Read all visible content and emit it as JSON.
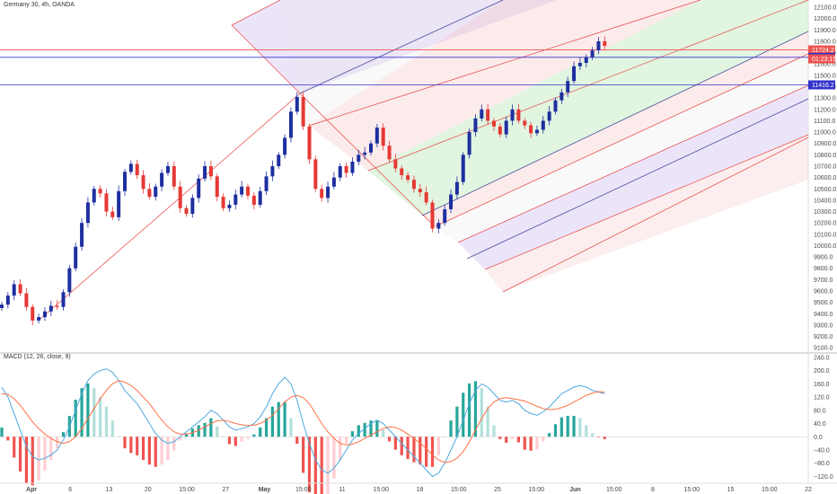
{
  "header": {
    "symbol_line": "Germany 30, 4h, OANDA",
    "macd_line": "MACD (12, 26, close, 9)"
  },
  "chart_data": [
    {
      "type": "candlestick",
      "y_ticks": [
        12100,
        12000,
        11900,
        11800,
        11700,
        11600,
        11500,
        11400,
        11300,
        11200,
        11100,
        11000,
        10900,
        10800,
        10700,
        10600,
        10500,
        10400,
        10300,
        10200,
        10100,
        10000,
        9900,
        9800,
        9700,
        9600,
        9500,
        9400,
        9300,
        9200,
        9100
      ],
      "ylim": [
        9070,
        12140
      ],
      "closes": [
        9480,
        9560,
        9660,
        9580,
        9460,
        9340,
        9370,
        9420,
        9470,
        9460,
        9590,
        9800,
        9990,
        10200,
        10380,
        10500,
        10460,
        10300,
        10250,
        10480,
        10650,
        10720,
        10620,
        10500,
        10430,
        10520,
        10640,
        10700,
        10520,
        10330,
        10280,
        10420,
        10590,
        10700,
        10610,
        10430,
        10330,
        10360,
        10450,
        10520,
        10440,
        10360,
        10480,
        10610,
        10700,
        10800,
        10950,
        11180,
        11310,
        11050,
        10760,
        10500,
        10420,
        10520,
        10600,
        10700,
        10640,
        10740,
        10800,
        10820,
        10900,
        11040,
        10880,
        10760,
        10680,
        10620,
        10580,
        10500,
        10470,
        10380,
        10150,
        10200,
        10320,
        10450,
        10560,
        10800,
        11000,
        11120,
        11200,
        11100,
        11050,
        10980,
        11100,
        11200,
        11100,
        11060,
        10990,
        11020,
        11100,
        11180,
        11280,
        11350,
        11450,
        11580,
        11610,
        11660,
        11720,
        11800,
        11760
      ],
      "price_lines": [
        {
          "price": 11724.2,
          "color": "#ef5350",
          "label": "11724.2"
        },
        {
          "price": 11658.7,
          "color": "#3333cc",
          "label": "11658.7"
        },
        {
          "price": 11416.2,
          "color": "#3333cc",
          "label": "11416.2"
        }
      ],
      "countdown_label": "01:23:15",
      "x_labels": [
        "Apr",
        "6",
        "13",
        "20",
        "15:00",
        "27",
        "May",
        "15:00",
        "11",
        "15:00",
        "18",
        "15:00",
        "25",
        "15:00",
        "Jun",
        "15:00",
        "8",
        "15:00",
        "15",
        "15:00",
        "22"
      ],
      "bold_x_labels": [
        "Apr",
        "May",
        "Jun"
      ],
      "colors": {
        "up": "#1e2fa0",
        "down": "#e53935",
        "trend": "#e53935",
        "median": "#2b2f8a",
        "hline": "#3333cc",
        "label_red": "#ef5350"
      }
    },
    {
      "type": "macd",
      "title": "MACD (12, 26, close, 9)",
      "y_ticks": [
        240,
        200,
        160,
        120,
        80,
        40,
        0,
        -40,
        -80,
        -120
      ],
      "y_tick_labels": [
        "240.0",
        "200.0",
        "160.0",
        "120.0",
        "80.0",
        "40.0",
        "0.0",
        "−40.0",
        "−80.0",
        "−120.0"
      ],
      "ylim": [
        -135,
        245
      ],
      "macd": [
        150,
        120,
        70,
        20,
        -30,
        -60,
        -70,
        -65,
        -55,
        -40,
        -10,
        30,
        80,
        130,
        170,
        190,
        200,
        205,
        195,
        170,
        140,
        120,
        100,
        70,
        40,
        10,
        -10,
        -20,
        -15,
        0,
        15,
        30,
        45,
        60,
        80,
        70,
        50,
        30,
        20,
        25,
        30,
        40,
        60,
        90,
        130,
        160,
        180,
        160,
        110,
        40,
        -20,
        -70,
        -100,
        -110,
        -95,
        -70,
        -40,
        -10,
        10,
        25,
        40,
        50,
        40,
        20,
        0,
        -20,
        -40,
        -60,
        -80,
        -100,
        -120,
        -110,
        -80,
        -40,
        0,
        50,
        100,
        140,
        160,
        150,
        130,
        110,
        105,
        110,
        100,
        80,
        70,
        65,
        75,
        90,
        110,
        130,
        140,
        150,
        155,
        150,
        140,
        135,
        130
      ],
      "signal": [
        130,
        128,
        115,
        95,
        70,
        45,
        25,
        8,
        -5,
        -15,
        -20,
        -15,
        0,
        25,
        55,
        85,
        115,
        140,
        160,
        170,
        165,
        155,
        140,
        120,
        100,
        75,
        50,
        30,
        15,
        8,
        8,
        12,
        20,
        30,
        40,
        48,
        50,
        46,
        40,
        36,
        34,
        35,
        40,
        50,
        65,
        85,
        105,
        120,
        125,
        118,
        100,
        70,
        40,
        15,
        -5,
        -20,
        -25,
        -22,
        -15,
        -5,
        5,
        15,
        25,
        30,
        28,
        20,
        8,
        -5,
        -20,
        -35,
        -55,
        -70,
        -78,
        -75,
        -65,
        -45,
        -15,
        20,
        55,
        85,
        105,
        115,
        118,
        115,
        112,
        108,
        100,
        92,
        85,
        82,
        83,
        88,
        95,
        105,
        115,
        125,
        132,
        136,
        135
      ]
    }
  ]
}
